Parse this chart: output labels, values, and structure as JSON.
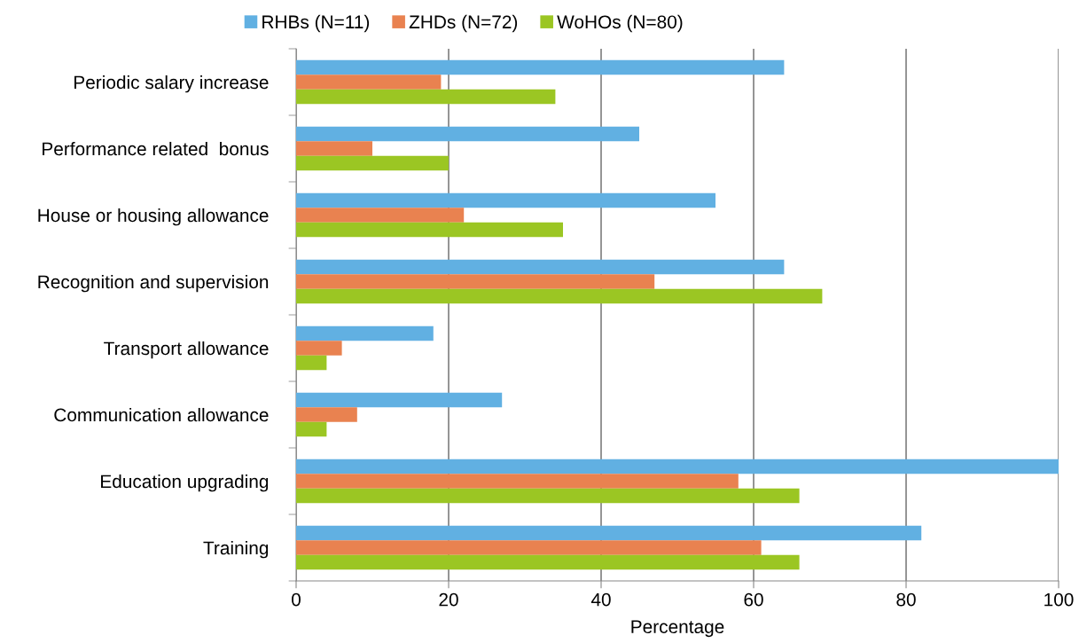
{
  "chart_data": {
    "type": "bar",
    "orientation": "horizontal",
    "xlabel": "Percentage",
    "categories": [
      "Periodic salary increase",
      "Performance related  bonus",
      "House or housing allowance",
      "Recognition and supervision",
      "Transport allowance",
      "Communication allowance",
      "Education upgrading",
      "Training"
    ],
    "series": [
      {
        "name": "RHBs (N=11)",
        "color": "#61b0e2",
        "values": [
          64,
          45,
          55,
          64,
          18,
          27,
          100,
          82
        ]
      },
      {
        "name": "ZHDs (N=72)",
        "color": "#e98250",
        "values": [
          19,
          10,
          22,
          47,
          6,
          8,
          58,
          61
        ]
      },
      {
        "name": "WoHOs (N=80)",
        "color": "#9bc623",
        "values": [
          34,
          20,
          35,
          69,
          4,
          4,
          66,
          66
        ]
      }
    ],
    "xlim": [
      0,
      100
    ],
    "xticks": [
      0,
      20,
      40,
      60,
      80,
      100
    ],
    "grid": "x",
    "legend": "top"
  }
}
